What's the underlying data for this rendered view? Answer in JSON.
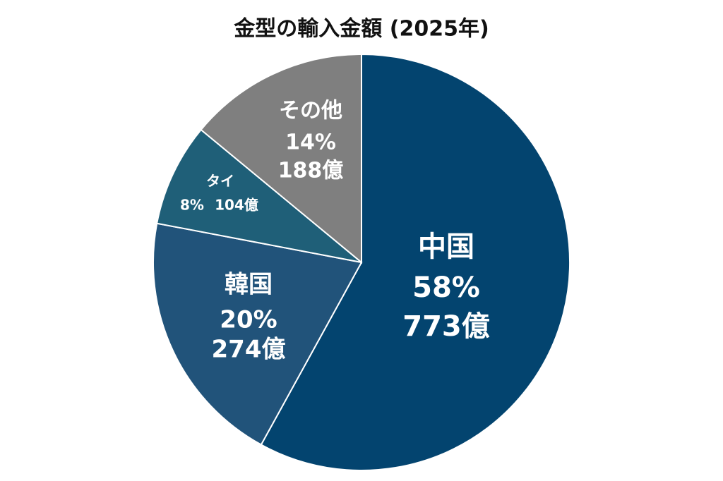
{
  "chart_data": {
    "type": "pie",
    "title": "金型の輸入金額 (2025年)",
    "categories": [
      "中国",
      "韓国",
      "タイ",
      "その他"
    ],
    "values": [
      58,
      20,
      8,
      14
    ],
    "value_labels": [
      "58%",
      "20%",
      "8%",
      "14%"
    ],
    "amounts": [
      773,
      274,
      104,
      188
    ],
    "amount_labels": [
      "773億",
      "274億",
      "104億",
      "188億"
    ],
    "colors": [
      "#03446f",
      "#21537a",
      "#1f5f78",
      "#7f7f7f"
    ]
  }
}
